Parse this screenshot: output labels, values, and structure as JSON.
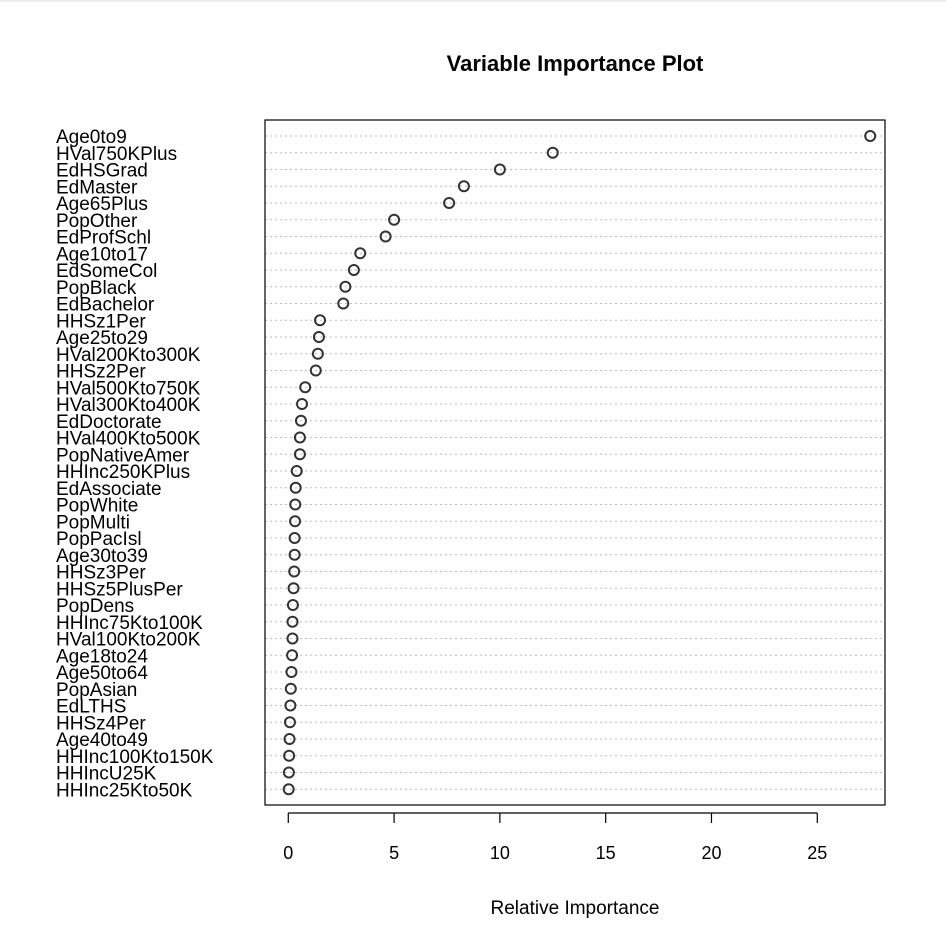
{
  "chart_data": {
    "type": "scatter",
    "title": "Variable Importance Plot",
    "xlabel": "Relative Importance",
    "ylabel": "",
    "xlim": [
      -1.1,
      28.2
    ],
    "xticks": [
      0,
      5,
      10,
      15,
      20,
      25
    ],
    "grid": "horizontal-dotted",
    "categories": [
      "Age0to9",
      "HVal750KPlus",
      "EdHSGrad",
      "EdMaster",
      "Age65Plus",
      "PopOther",
      "EdProfSchl",
      "Age10to17",
      "EdSomeCol",
      "PopBlack",
      "EdBachelor",
      "HHSz1Per",
      "Age25to29",
      "HVal200Kto300K",
      "HHSz2Per",
      "HVal500Kto750K",
      "HVal300Kto400K",
      "EdDoctorate",
      "HVal400Kto500K",
      "PopNativeAmer",
      "HHInc250KPlus",
      "EdAssociate",
      "PopWhite",
      "PopMulti",
      "PopPacIsl",
      "Age30to39",
      "HHSz3Per",
      "HHSz5PlusPer",
      "PopDens",
      "HHInc75Kto100K",
      "HVal100Kto200K",
      "Age18to24",
      "Age50to64",
      "PopAsian",
      "EdLTHS",
      "HHSz4Per",
      "Age40to49",
      "HHInc100Kto150K",
      "HHIncU25K",
      "HHInc25Kto50K"
    ],
    "values": [
      27.5,
      12.5,
      10.0,
      8.3,
      7.6,
      5.0,
      4.6,
      3.4,
      3.1,
      2.7,
      2.6,
      1.5,
      1.45,
      1.4,
      1.3,
      0.8,
      0.65,
      0.6,
      0.55,
      0.55,
      0.4,
      0.35,
      0.33,
      0.32,
      0.3,
      0.3,
      0.28,
      0.25,
      0.22,
      0.2,
      0.2,
      0.18,
      0.15,
      0.12,
      0.1,
      0.08,
      0.06,
      0.04,
      0.03,
      0.02
    ]
  }
}
